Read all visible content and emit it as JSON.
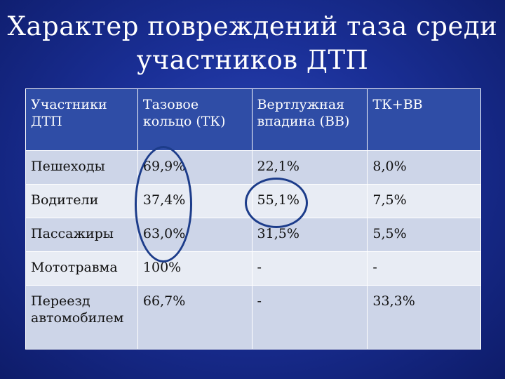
{
  "title": {
    "line1": "Характер повреждений таза среди",
    "line2": "участников ДТП"
  },
  "table": {
    "header": [
      "Участники ДТП",
      "Тазовое кольцо (ТК)",
      "Вертлужная впадина (ВВ)",
      "ТК+ВВ"
    ],
    "rows": [
      [
        "Пешеходы",
        "69,9%",
        "22,1%",
        "8,0%"
      ],
      [
        "Водители",
        "37,4%",
        "55,1%",
        "7,5%"
      ],
      [
        "Пассажиры",
        "63,0%",
        "31,5%",
        "5,5%"
      ],
      [
        "Мототравма",
        "100%",
        "-",
        "-"
      ],
      [
        "Переезд автомобилем",
        "66,7%",
        "-",
        "33,3%"
      ]
    ]
  },
  "colors": {
    "background": "#1a2f96",
    "header_fill": "#2f4da6",
    "row_fill_dark": "#cdd5e8",
    "row_fill_light": "#e8ecf4",
    "highlight_circle": "#1c3c8a"
  }
}
